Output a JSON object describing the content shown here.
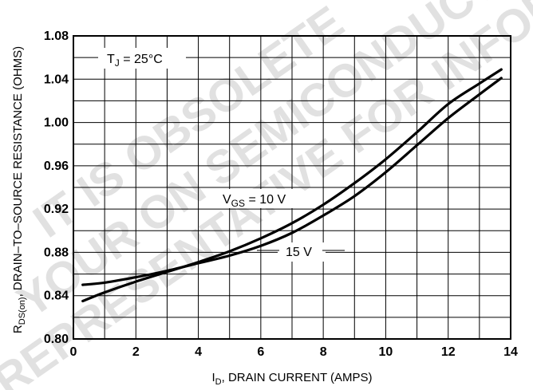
{
  "chart_data": {
    "type": "line",
    "xlabel_main": "I",
    "xlabel_sub": "D",
    "xlabel_rest": ", DRAIN CURRENT (AMPS)",
    "ylabel_main": "R",
    "ylabel_sub": "DS(on)",
    "ylabel_rest": ", DRAIN–TO–SOURCE RESISTANCE (OHMS)",
    "xlim": [
      0,
      14
    ],
    "ylim": [
      0.8,
      1.08
    ],
    "xticks": [
      0,
      2,
      4,
      6,
      8,
      10,
      12,
      14
    ],
    "xtick_labels": [
      "0",
      "2",
      "4",
      "6",
      "8",
      "10",
      "12",
      "14"
    ],
    "yticks": [
      0.8,
      0.84,
      0.88,
      0.92,
      0.96,
      1.0,
      1.04,
      1.08
    ],
    "ytick_labels": [
      "0.80",
      "0.84",
      "0.88",
      "0.92",
      "0.96",
      "1.00",
      "1.04",
      "1.08"
    ],
    "grid": true,
    "annotations": {
      "temp_main": "T",
      "temp_sub": "J",
      "temp_rest": " = 25°C",
      "vgs_main": "V",
      "vgs_sub": "GS",
      "vgs_rest": " = 10 V",
      "v15": "15 V"
    },
    "series": [
      {
        "name": "V_GS = 10 V",
        "x": [
          0.3,
          1,
          2,
          3,
          4,
          5,
          6,
          7,
          8,
          9,
          10,
          11,
          12,
          13,
          13.7
        ],
        "y": [
          0.835,
          0.843,
          0.853,
          0.862,
          0.871,
          0.881,
          0.893,
          0.907,
          0.924,
          0.944,
          0.966,
          0.991,
          1.017,
          1.036,
          1.049
        ]
      },
      {
        "name": "15 V",
        "x": [
          0.3,
          1,
          2,
          3,
          4,
          5,
          6,
          7,
          8,
          9,
          10,
          11,
          12,
          13,
          13.7
        ],
        "y": [
          0.85,
          0.852,
          0.857,
          0.863,
          0.87,
          0.877,
          0.886,
          0.898,
          0.914,
          0.932,
          0.954,
          0.979,
          1.004,
          1.026,
          1.041
        ]
      }
    ],
    "watermark": [
      "IT IS OBSOLETE",
      "YOUR ON SEMICONDUCTOR",
      "REPRESENTATIVE FOR INFORMATION"
    ]
  }
}
